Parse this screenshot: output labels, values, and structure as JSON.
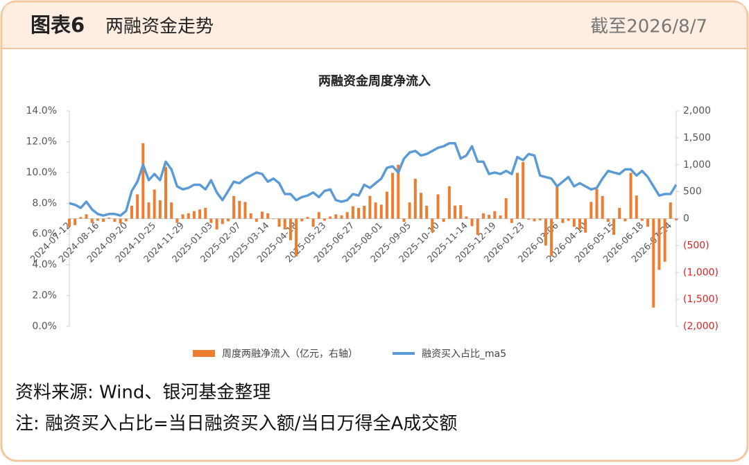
{
  "header": {
    "figure": "图表6",
    "title": "两融资金走势",
    "date": "截至2026/8/7"
  },
  "chart_data": {
    "type": "combo",
    "title": "两融资金周度净流入",
    "categories": [
      "2024-07-12",
      null,
      null,
      null,
      null,
      "2024-08-16",
      null,
      null,
      null,
      null,
      "2024-09-20",
      null,
      null,
      null,
      null,
      "2024-10-25",
      null,
      null,
      null,
      null,
      "2024-11-29",
      null,
      null,
      null,
      null,
      "2025-01-03",
      null,
      null,
      null,
      null,
      "2025-02-07",
      null,
      null,
      null,
      null,
      "2025-03-14",
      null,
      null,
      null,
      null,
      "2025-04-18",
      null,
      null,
      null,
      null,
      "2025-05-23",
      null,
      null,
      null,
      null,
      "2025-06-27",
      null,
      null,
      null,
      null,
      "2025-08-01",
      null,
      null,
      null,
      null,
      "2025-09-05",
      null,
      null,
      null,
      null,
      "2025-10-10",
      null,
      null,
      null,
      null,
      "2025-11-14",
      null,
      null,
      null,
      null,
      "2025-12-19",
      null,
      null,
      null,
      null,
      "2026-01-23",
      null,
      null,
      null,
      null,
      null,
      "2026-03-06",
      null,
      null,
      null,
      null,
      "2026-04-10",
      null,
      null,
      null,
      null,
      "2026-05-15",
      null,
      null,
      null,
      null,
      "2026-06-18",
      null,
      null,
      null,
      null,
      "2026-07-24",
      null
    ],
    "series": [
      {
        "name": "周度两融净流入（亿元，右轴）",
        "type": "bar",
        "axis": "y2",
        "color": "#ed7d31",
        "values": [
          -150,
          -120,
          30,
          80,
          -80,
          -40,
          -60,
          20,
          -60,
          -90,
          -50,
          240,
          450,
          1400,
          300,
          540,
          340,
          960,
          300,
          -80,
          80,
          100,
          140,
          170,
          200,
          -80,
          -200,
          -100,
          -50,
          420,
          330,
          310,
          100,
          -60,
          130,
          100,
          -10,
          -150,
          -200,
          -400,
          -700,
          -50,
          30,
          -150,
          120,
          -40,
          40,
          80,
          60,
          120,
          230,
          200,
          240,
          420,
          300,
          260,
          500,
          850,
          1000,
          -60,
          300,
          740,
          480,
          240,
          -250,
          450,
          -60,
          600,
          240,
          250,
          40,
          -140,
          -300,
          100,
          70,
          140,
          60,
          380,
          -80,
          850,
          1050,
          -20,
          -50,
          -30,
          -500,
          -700,
          600,
          -80,
          -40,
          -150,
          -200,
          -260,
          310,
          550,
          420,
          -60,
          -300,
          200,
          -50,
          850,
          430,
          -40,
          -150,
          -1650,
          -950,
          -800,
          300,
          -30
        ]
      },
      {
        "name": "融资买入占比_ma5",
        "type": "line",
        "axis": "y",
        "color": "#5b9bd5",
        "values": [
          8.0,
          7.9,
          7.7,
          8.1,
          7.6,
          7.3,
          7.2,
          7.3,
          7.3,
          7.2,
          7.5,
          8.8,
          9.4,
          10.5,
          9.5,
          9.9,
          9.5,
          10.7,
          10.2,
          9.1,
          8.9,
          9.0,
          9.2,
          9.2,
          8.9,
          9.5,
          8.7,
          8.2,
          8.8,
          9.4,
          9.3,
          9.6,
          9.8,
          10.0,
          9.9,
          9.4,
          9.6,
          9.3,
          8.6,
          8.6,
          8.2,
          8.4,
          8.5,
          8.7,
          8.4,
          8.8,
          8.9,
          8.2,
          8.1,
          8.2,
          8.6,
          8.5,
          9.2,
          9.0,
          9.3,
          9.6,
          10.3,
          10.4,
          10.0,
          10.9,
          11.3,
          11.4,
          11.1,
          11.2,
          11.4,
          11.6,
          11.7,
          11.9,
          11.9,
          10.9,
          11.1,
          11.7,
          10.7,
          10.7,
          9.9,
          10.0,
          9.9,
          10.1,
          9.9,
          11.0,
          10.8,
          11.2,
          11.1,
          9.8,
          9.7,
          9.6,
          9.1,
          9.4,
          9.7,
          9.1,
          9.3,
          9.1,
          8.9,
          9.0,
          9.6,
          10.1,
          10.0,
          9.9,
          10.2,
          10.2,
          9.8,
          10.1,
          9.7,
          9.1,
          8.5,
          8.6,
          8.6,
          9.2
        ]
      }
    ],
    "ylim": [
      0,
      14
    ],
    "yticks": [
      {
        "value": 0,
        "label": "0.0%"
      },
      {
        "value": 2,
        "label": "2.0%"
      },
      {
        "value": 4,
        "label": "4.0%"
      },
      {
        "value": 6,
        "label": "6.0%"
      },
      {
        "value": 8,
        "label": "8.0%"
      },
      {
        "value": 10,
        "label": "10.0%"
      },
      {
        "value": 12,
        "label": "12.0%"
      },
      {
        "value": 14,
        "label": "14.0%"
      }
    ],
    "y2lim": [
      -2000,
      2000
    ],
    "y2ticks": [
      {
        "value": -2000,
        "label": "(2,000)"
      },
      {
        "value": -1500,
        "label": "(1,500)"
      },
      {
        "value": -1000,
        "label": "(1,000)"
      },
      {
        "value": -500,
        "label": "(500)"
      },
      0,
      500,
      {
        "value": 1000,
        "label": "1,000"
      },
      {
        "value": 1500,
        "label": "1,500"
      },
      {
        "value": 2000,
        "label": "2,000"
      }
    ],
    "y2_negative_label_color": "#e02020",
    "grid": false,
    "legend": "bottom"
  },
  "footer": {
    "source": "资料来源: Wind、银河基金整理",
    "note": "注: 融资买入占比=当日融资买入额/当日万得全A成交额"
  }
}
